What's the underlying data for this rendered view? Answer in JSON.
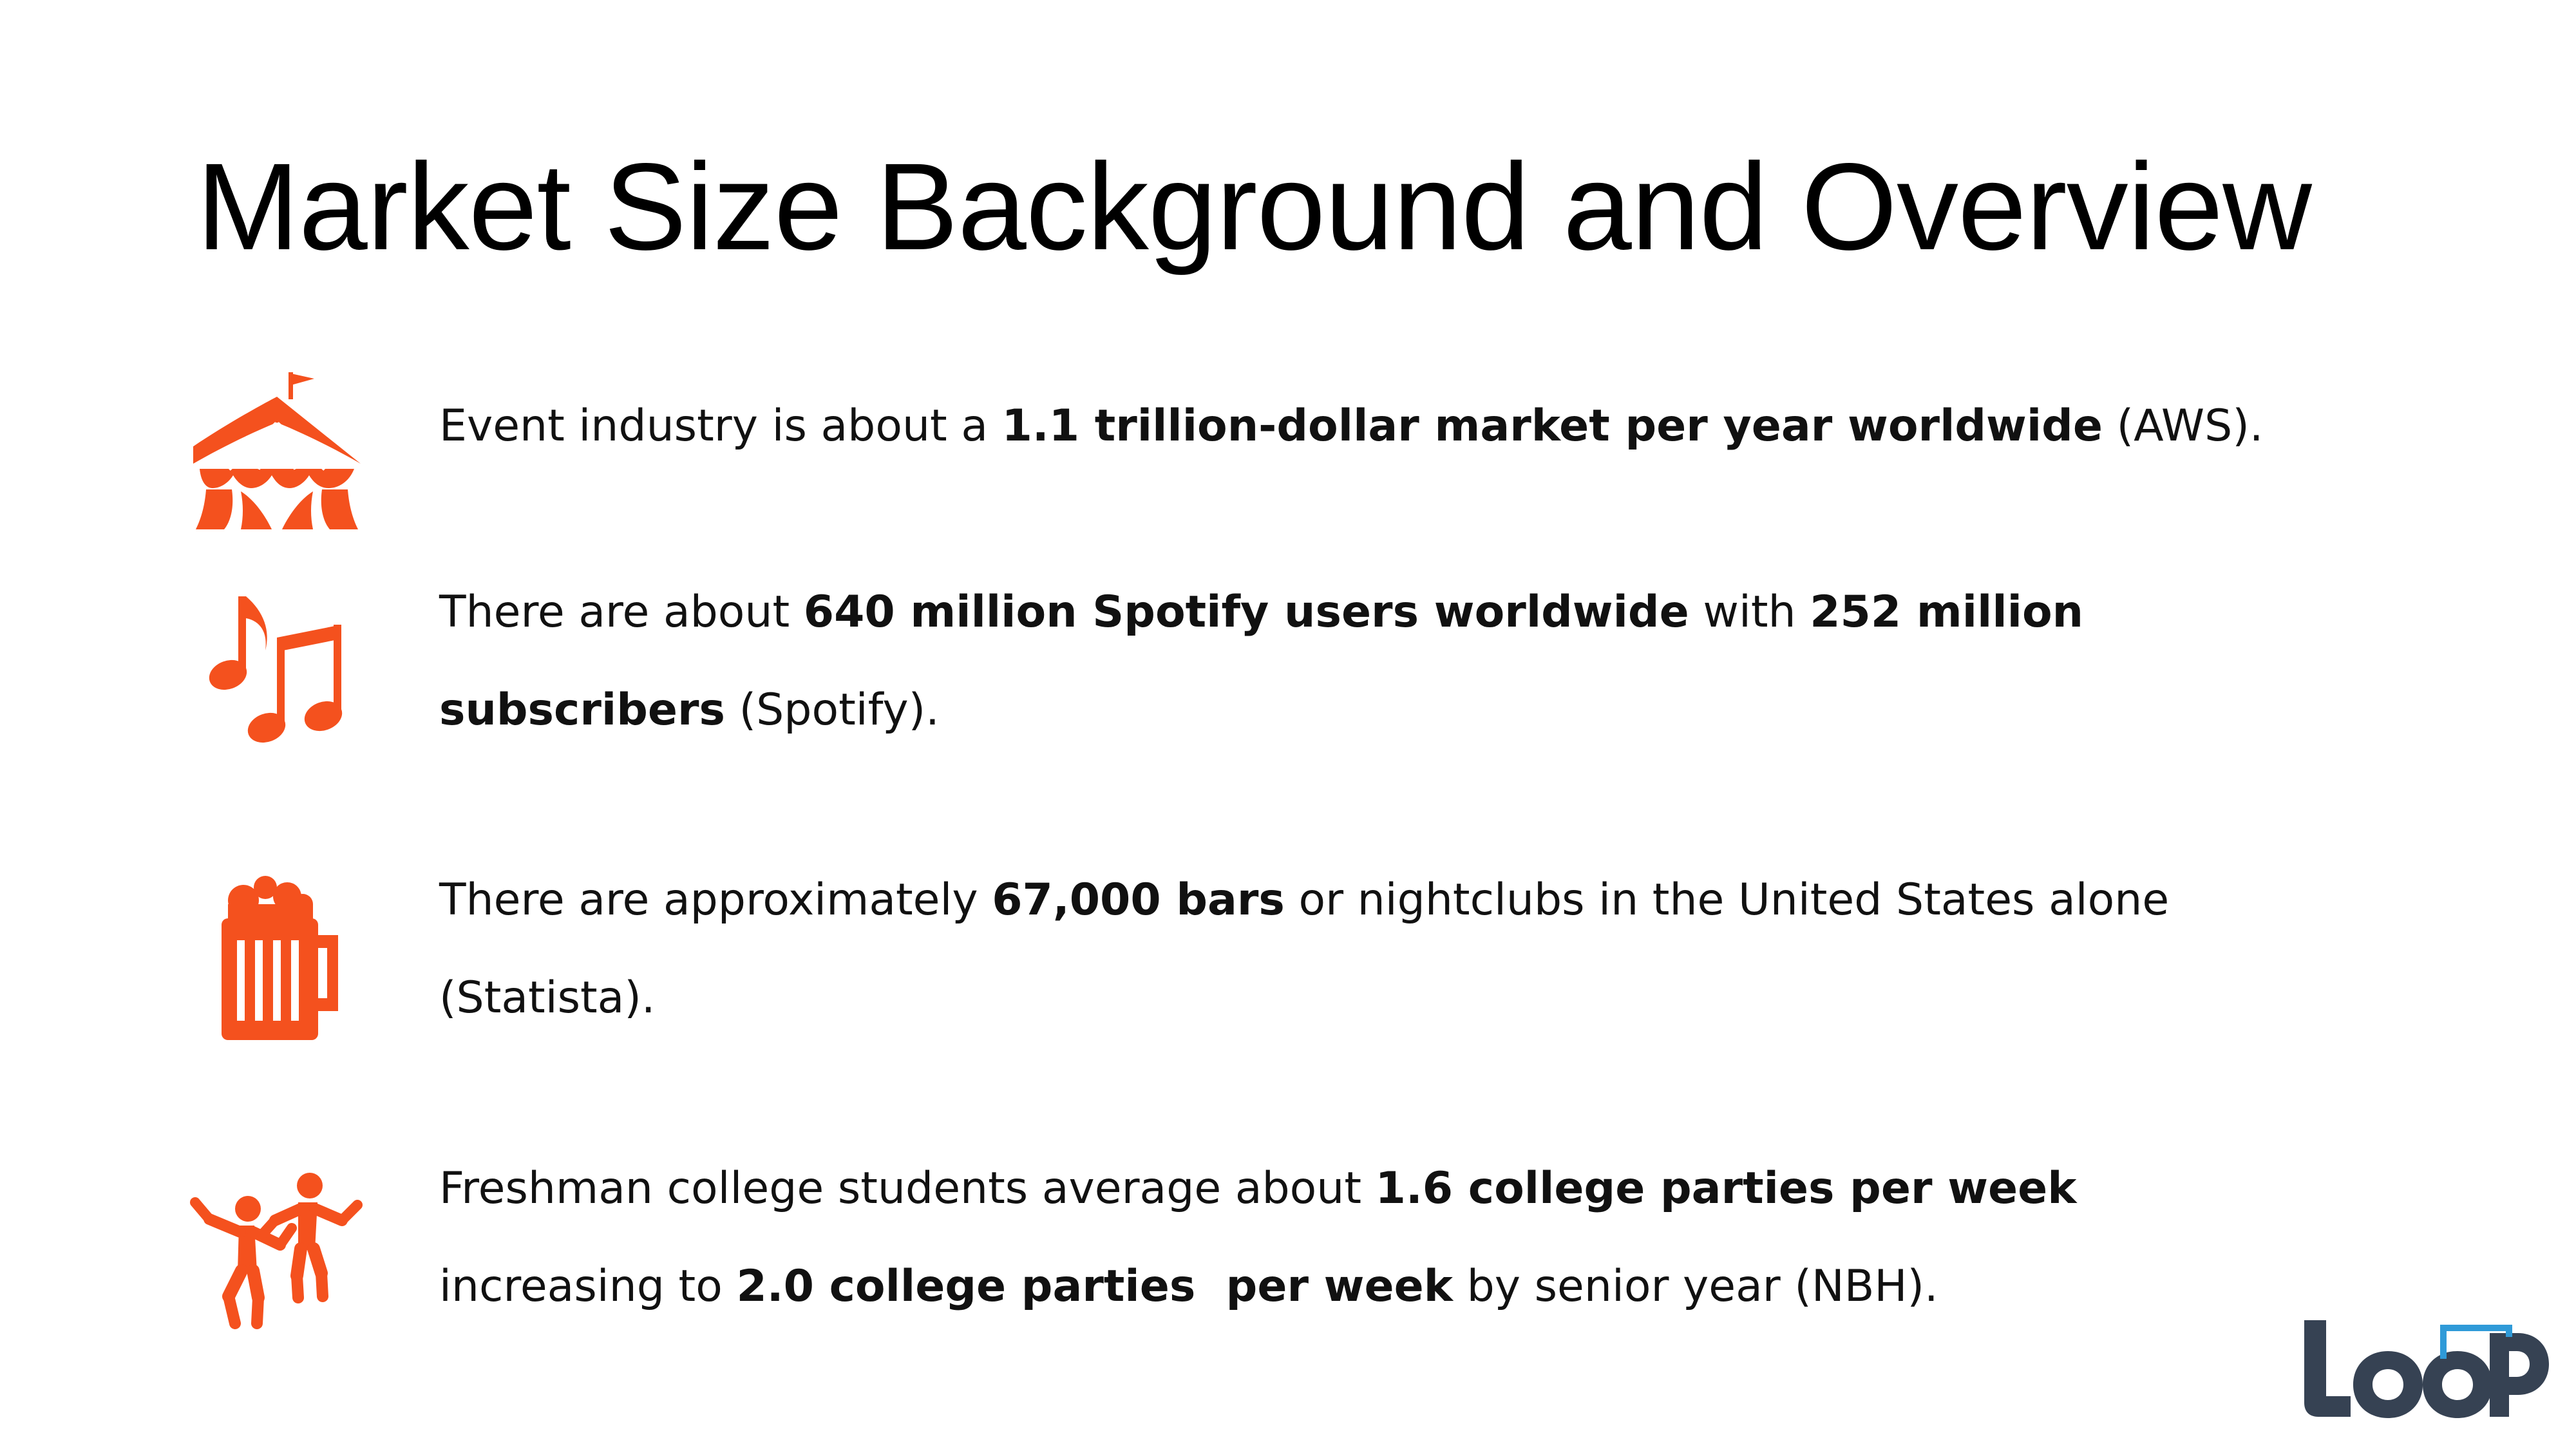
{
  "title": "Market Size Background and Overview",
  "accent_color": "#f4511e",
  "logo_dark_color": "#364253",
  "logo_accent_color": "#2f9ad8",
  "bullets": [
    {
      "icon": "circus-tent-icon",
      "lines": [
        [
          {
            "text": "Event industry is about a ",
            "bold": false
          },
          {
            "text": "1.1 trillion-dollar market per year worldwide",
            "bold": true
          },
          {
            "text": " (AWS).",
            "bold": false
          }
        ]
      ]
    },
    {
      "icon": "music-notes-icon",
      "lines": [
        [
          {
            "text": "There are about ",
            "bold": false
          },
          {
            "text": "640 million Spotify users worldwide",
            "bold": true
          },
          {
            "text": " with ",
            "bold": false
          },
          {
            "text": "252 million",
            "bold": true
          }
        ],
        [
          {
            "text": "subscribers",
            "bold": true
          },
          {
            "text": " (Spotify).",
            "bold": false
          }
        ]
      ]
    },
    {
      "icon": "beer-mug-icon",
      "lines": [
        [
          {
            "text": "There are approximately ",
            "bold": false
          },
          {
            "text": "67,000 bars",
            "bold": true
          },
          {
            "text": " or nightclubs in the United States alone",
            "bold": false
          }
        ],
        [
          {
            "text": "(Statista).",
            "bold": false
          }
        ]
      ]
    },
    {
      "icon": "dancing-people-icon",
      "lines": [
        [
          {
            "text": "Freshman college students average about ",
            "bold": false
          },
          {
            "text": "1.6 college parties per week",
            "bold": true
          }
        ],
        [
          {
            "text": "increasing to ",
            "bold": false
          },
          {
            "text": "2.0 college parties  per week",
            "bold": true
          },
          {
            "text": " by senior year (NBH).",
            "bold": false
          }
        ]
      ]
    }
  ],
  "logo": {
    "text": "LOOP",
    "icon": "loop-logo"
  }
}
